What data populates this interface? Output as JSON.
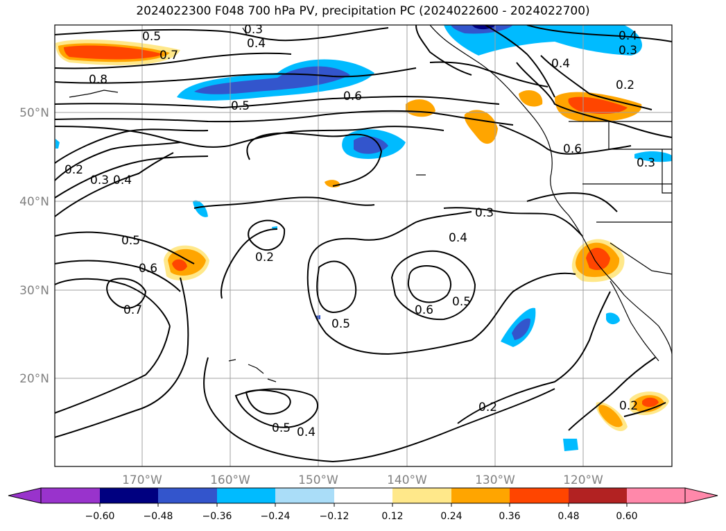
{
  "title": "2024022300 F048 700 hPa PV, precipitation PC (2024022600 - 2024022700)",
  "map": {
    "lon_labels": [
      "170°W",
      "160°W",
      "150°W",
      "140°W",
      "130°W",
      "120°W"
    ],
    "lat_labels": [
      "50°N",
      "40°N",
      "30°N",
      "20°N"
    ],
    "contour_labels": [
      "0.5",
      "0.3",
      "0.7",
      "0.4",
      "0.8",
      "0.6",
      "0.5",
      "0.4",
      "0.3",
      "0.4",
      "0.2",
      "0.2",
      "0.3",
      "0.4",
      "0.6",
      "0.3",
      "0.3",
      "0.4",
      "0.5",
      "0.2",
      "0.6",
      "0.7",
      "0.5",
      "0.6",
      "0.5",
      "0.2",
      "0.5",
      "0.4",
      "0.2"
    ],
    "gridline_color": "#a0a0a0",
    "contour_color": "#000000"
  },
  "colorbar": {
    "tick_labels": [
      "−0.60",
      "−0.48",
      "−0.36",
      "−0.24",
      "−0.12",
      "0.12",
      "0.24",
      "0.36",
      "0.48",
      "0.60"
    ],
    "colors": [
      "#9933cc",
      "#000080",
      "#3355cc",
      "#00bbff",
      "#aaddf8",
      "#ffffff",
      "#ffe88a",
      "#ffa500",
      "#ff4500",
      "#b22222",
      "#ff88aa"
    ]
  }
}
